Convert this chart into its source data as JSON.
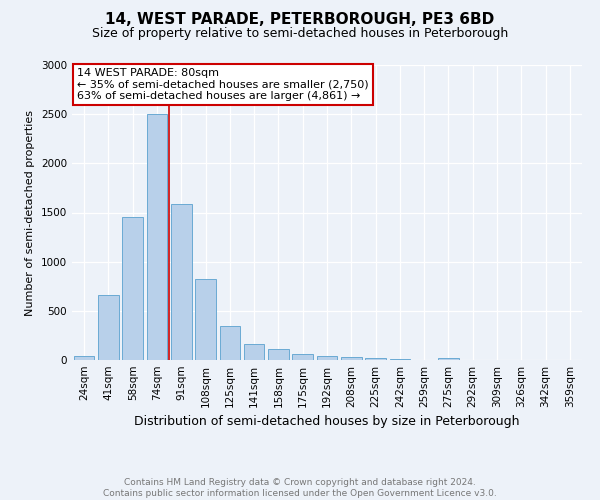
{
  "title": "14, WEST PARADE, PETERBOROUGH, PE3 6BD",
  "subtitle": "Size of property relative to semi-detached houses in Peterborough",
  "xlabel": "Distribution of semi-detached houses by size in Peterborough",
  "ylabel": "Number of semi-detached properties",
  "categories": [
    "24sqm",
    "41sqm",
    "58sqm",
    "74sqm",
    "91sqm",
    "108sqm",
    "125sqm",
    "141sqm",
    "158sqm",
    "175sqm",
    "192sqm",
    "208sqm",
    "225sqm",
    "242sqm",
    "259sqm",
    "275sqm",
    "292sqm",
    "309sqm",
    "326sqm",
    "342sqm",
    "359sqm"
  ],
  "values": [
    40,
    660,
    1450,
    2500,
    1590,
    820,
    350,
    165,
    115,
    65,
    40,
    30,
    20,
    15,
    5,
    20,
    0,
    0,
    0,
    0,
    0
  ],
  "bar_color": "#b8d0ea",
  "bar_edge_color": "#6aaad4",
  "annotation_text_line1": "14 WEST PARADE: 80sqm",
  "annotation_text_line2": "← 35% of semi-detached houses are smaller (2,750)",
  "annotation_text_line3": "63% of semi-detached houses are larger (4,861) →",
  "annotation_box_color": "#ffffff",
  "annotation_box_edge": "#cc0000",
  "vline_color": "#cc0000",
  "vline_x": 3.5,
  "ylim": [
    0,
    3000
  ],
  "yticks": [
    0,
    500,
    1000,
    1500,
    2000,
    2500,
    3000
  ],
  "title_fontsize": 11,
  "subtitle_fontsize": 9,
  "xlabel_fontsize": 9,
  "ylabel_fontsize": 8,
  "tick_fontsize": 7.5,
  "annotation_fontsize": 8,
  "footer_text": "Contains HM Land Registry data © Crown copyright and database right 2024.\nContains public sector information licensed under the Open Government Licence v3.0.",
  "footer_fontsize": 6.5,
  "bg_color": "#edf2f9",
  "plot_bg_color": "#edf2f9"
}
